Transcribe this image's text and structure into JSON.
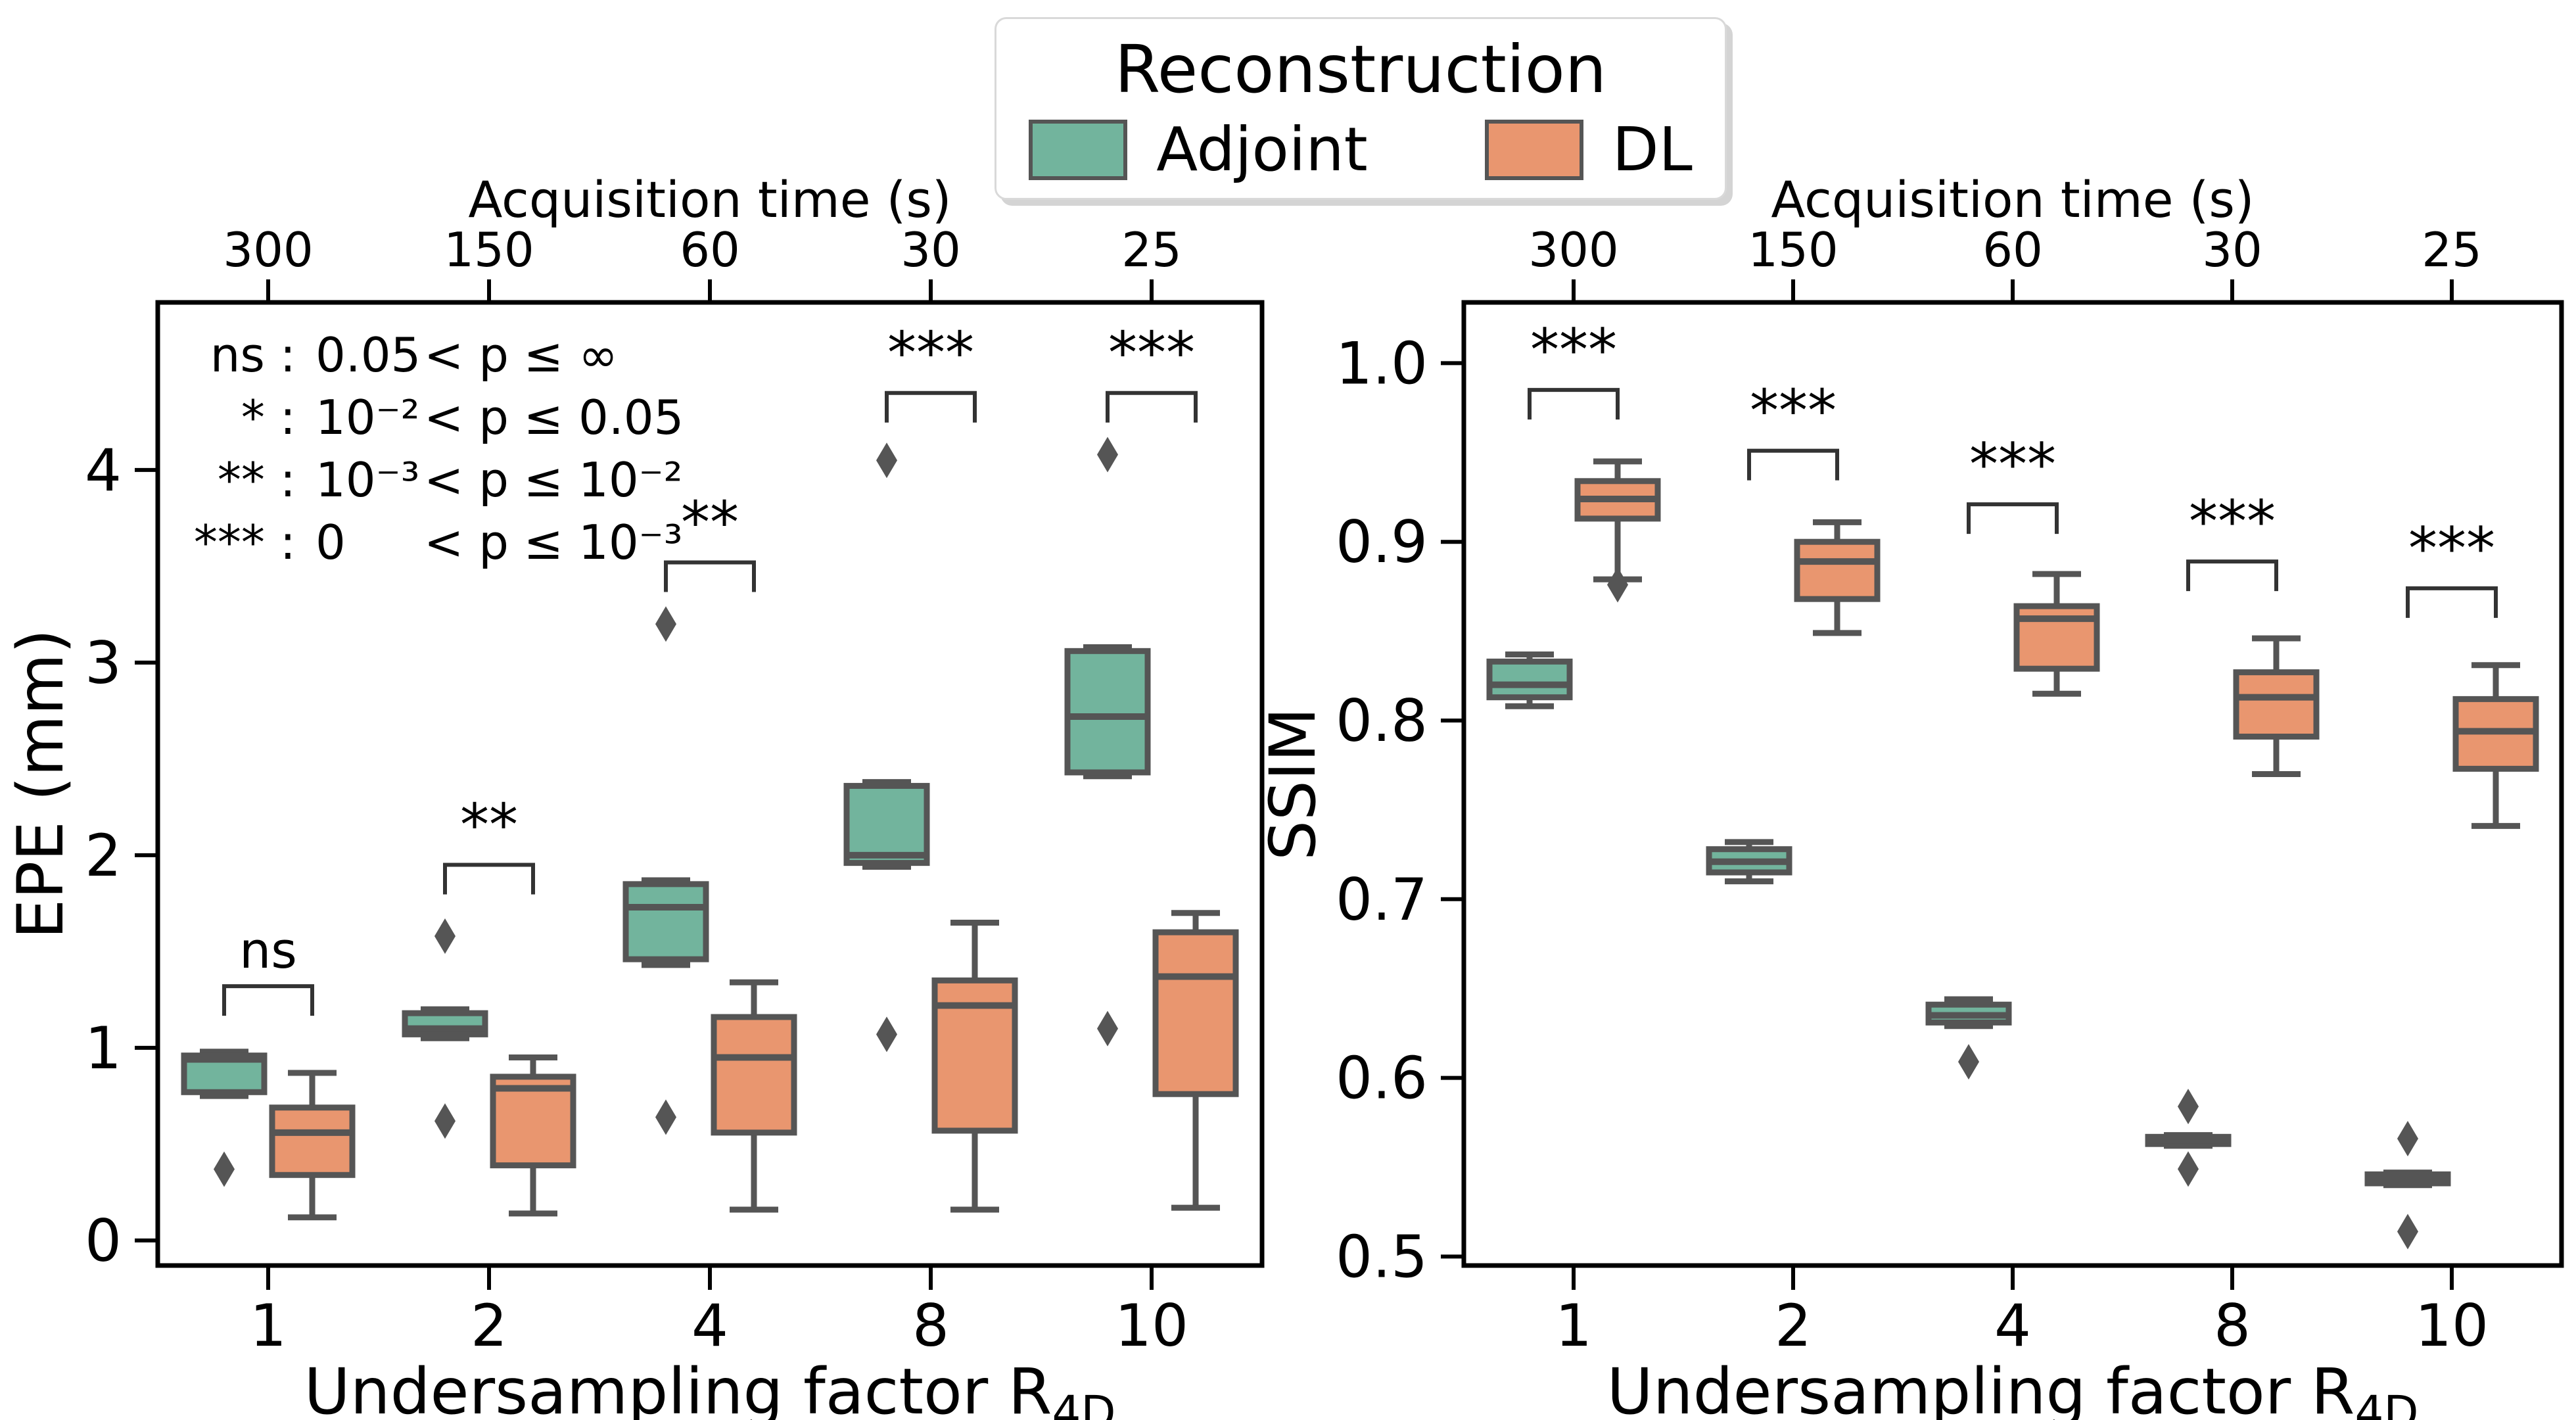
{
  "chart_data": {
    "type": "boxplot-grouped",
    "background": "#ffffff",
    "legend": {
      "title": "Reconstruction",
      "entries": [
        {
          "name": "adjoint",
          "label": "Adjoint",
          "color": "#72b49d"
        },
        {
          "name": "dl",
          "label": "DL",
          "color": "#e9966f"
        }
      ]
    },
    "edge_color": "#555555",
    "bracket_color": "#333333",
    "categories": [
      "1",
      "2",
      "4",
      "8",
      "10"
    ],
    "panels": [
      {
        "id": "epe",
        "ylabel": "EPE (mm)",
        "xlabel_main": "Undersampling factor R",
        "xlabel_sub": "4D",
        "top_label": "Acquisition time (s)",
        "top_ticks": [
          "300",
          "150",
          "60",
          "30",
          "25"
        ],
        "ylim": [
          -0.13,
          4.87
        ],
        "yticks": [
          0,
          1,
          2,
          3,
          4
        ],
        "ytick_labels": [
          "0",
          "1",
          "2",
          "3",
          "4"
        ],
        "pvalue_legend": [
          {
            "sym": "ns",
            "lb": "0.05",
            "tail": "< p ≤ ∞"
          },
          {
            "sym": "*",
            "lb": "10⁻²",
            "tail": "< p ≤ 0.05"
          },
          {
            "sym": "**",
            "lb": "10⁻³",
            "tail": "< p ≤ 10⁻²"
          },
          {
            "sym": "***",
            "lb": "0",
            "tail": "< p ≤ 10⁻³"
          }
        ],
        "series": [
          {
            "name": "Adjoint",
            "color": "#72b49d",
            "boxes": [
              {
                "whislo": 0.75,
                "q1": 0.77,
                "med": 0.94,
                "q3": 0.96,
                "whishi": 0.98,
                "fliers": [
                  0.37
                ]
              },
              {
                "whislo": 1.05,
                "q1": 1.07,
                "med": 1.1,
                "q3": 1.18,
                "whishi": 1.2,
                "fliers": [
                  1.58,
                  0.62
                ]
              },
              {
                "whislo": 1.43,
                "q1": 1.46,
                "med": 1.73,
                "q3": 1.85,
                "whishi": 1.87,
                "fliers": [
                  3.2,
                  0.64
                ]
              },
              {
                "whislo": 1.94,
                "q1": 1.96,
                "med": 2.0,
                "q3": 2.36,
                "whishi": 2.38,
                "fliers": [
                  4.05,
                  1.07
                ]
              },
              {
                "whislo": 2.41,
                "q1": 2.43,
                "med": 2.72,
                "q3": 3.06,
                "whishi": 3.08,
                "fliers": [
                  4.08,
                  1.1
                ]
              }
            ]
          },
          {
            "name": "DL",
            "color": "#e9966f",
            "boxes": [
              {
                "whislo": 0.12,
                "q1": 0.34,
                "med": 0.56,
                "q3": 0.69,
                "whishi": 0.87,
                "fliers": []
              },
              {
                "whislo": 0.14,
                "q1": 0.39,
                "med": 0.79,
                "q3": 0.85,
                "whishi": 0.95,
                "fliers": []
              },
              {
                "whislo": 0.16,
                "q1": 0.56,
                "med": 0.95,
                "q3": 1.16,
                "whishi": 1.34,
                "fliers": []
              },
              {
                "whislo": 0.16,
                "q1": 0.57,
                "med": 1.22,
                "q3": 1.35,
                "whishi": 1.65,
                "fliers": []
              },
              {
                "whislo": 0.17,
                "q1": 0.76,
                "med": 1.37,
                "q3": 1.6,
                "whishi": 1.7,
                "fliers": []
              }
            ]
          }
        ],
        "brackets": [
          {
            "label": "ns",
            "y": 1.32
          },
          {
            "label": "**",
            "y": 1.95
          },
          {
            "label": "**",
            "y": 3.52
          },
          {
            "label": "***",
            "y": 4.4
          },
          {
            "label": "***",
            "y": 4.4
          }
        ]
      },
      {
        "id": "ssim",
        "ylabel": "SSIM",
        "xlabel_main": "Undersampling factor R",
        "xlabel_sub": "4D",
        "top_label": "Acquisition time (s)",
        "top_ticks": [
          "300",
          "150",
          "60",
          "30",
          "25"
        ],
        "ylim": [
          0.495,
          1.034
        ],
        "yticks": [
          0.5,
          0.6,
          0.7,
          0.8,
          0.9,
          1.0
        ],
        "ytick_labels": [
          "0.5",
          "0.6",
          "0.7",
          "0.8",
          "0.9",
          "1.0"
        ],
        "pvalue_legend": [],
        "series": [
          {
            "name": "Adjoint",
            "color": "#72b49d",
            "boxes": [
              {
                "whislo": 0.808,
                "q1": 0.813,
                "med": 0.82,
                "q3": 0.833,
                "whishi": 0.837,
                "fliers": []
              },
              {
                "whislo": 0.71,
                "q1": 0.715,
                "med": 0.721,
                "q3": 0.728,
                "whishi": 0.732,
                "fliers": []
              },
              {
                "whislo": 0.629,
                "q1": 0.631,
                "med": 0.635,
                "q3": 0.641,
                "whishi": 0.644,
                "fliers": [
                  0.609
                ]
              },
              {
                "whislo": 0.562,
                "q1": 0.563,
                "med": 0.565,
                "q3": 0.567,
                "whishi": 0.568,
                "fliers": [
                  0.584,
                  0.549
                ]
              },
              {
                "whislo": 0.54,
                "q1": 0.541,
                "med": 0.543,
                "q3": 0.546,
                "whishi": 0.547,
                "fliers": [
                  0.566,
                  0.514
                ]
              }
            ]
          },
          {
            "name": "DL",
            "color": "#e9966f",
            "boxes": [
              {
                "whislo": 0.879,
                "q1": 0.913,
                "med": 0.924,
                "q3": 0.934,
                "whishi": 0.945,
                "fliers": [
                  0.876
                ]
              },
              {
                "whislo": 0.849,
                "q1": 0.868,
                "med": 0.889,
                "q3": 0.9,
                "whishi": 0.911,
                "fliers": []
              },
              {
                "whislo": 0.815,
                "q1": 0.829,
                "med": 0.857,
                "q3": 0.864,
                "whishi": 0.882,
                "fliers": []
              },
              {
                "whislo": 0.77,
                "q1": 0.791,
                "med": 0.813,
                "q3": 0.827,
                "whishi": 0.846,
                "fliers": []
              },
              {
                "whislo": 0.741,
                "q1": 0.773,
                "med": 0.794,
                "q3": 0.812,
                "whishi": 0.831,
                "fliers": []
              }
            ]
          }
        ],
        "brackets": [
          {
            "label": "***",
            "y": 0.985
          },
          {
            "label": "***",
            "y": 0.951
          },
          {
            "label": "***",
            "y": 0.921
          },
          {
            "label": "***",
            "y": 0.889
          },
          {
            "label": "***",
            "y": 0.874
          }
        ]
      }
    ]
  }
}
